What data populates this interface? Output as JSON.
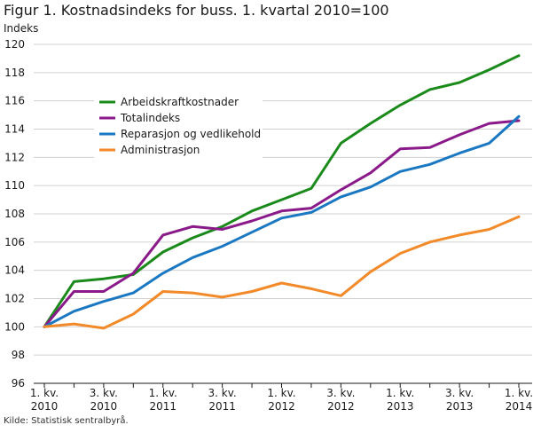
{
  "page": {
    "title": "Figur 1. Kostnadsindeks for buss. 1. kvartal 2010=100",
    "source": "Kilde: Statistisk sentralbyrå."
  },
  "chart_data": {
    "type": "line",
    "title": "Figur 1. Kostnadsindeks for buss. 1. kvartal 2010=100",
    "ylabel": "Indeks",
    "xlabel": "",
    "ylim": [
      96,
      120
    ],
    "yticks": [
      96,
      98,
      100,
      102,
      104,
      106,
      108,
      110,
      112,
      114,
      116,
      118,
      120
    ],
    "grid": true,
    "legend_position": "top-left (inside)",
    "x": [
      "1. kv. 2010",
      "2. kv. 2010",
      "3. kv. 2010",
      "4. kv. 2010",
      "1. kv. 2011",
      "2. kv. 2011",
      "3. kv. 2011",
      "4. kv. 2011",
      "1. kv. 2012",
      "2. kv. 2012",
      "3. kv. 2012",
      "4. kv. 2012",
      "1. kv. 2013",
      "2. kv. 2013",
      "3. kv. 2013",
      "4. kv. 2013",
      "1. kv. 2014"
    ],
    "xtick_labels": [
      {
        "index": 0,
        "line1": "1. kv.",
        "line2": "2010"
      },
      {
        "index": 2,
        "line1": "3. kv.",
        "line2": "2010"
      },
      {
        "index": 4,
        "line1": "1. kv.",
        "line2": "2011"
      },
      {
        "index": 6,
        "line1": "3. kv.",
        "line2": "2011"
      },
      {
        "index": 8,
        "line1": "1. kv.",
        "line2": "2012"
      },
      {
        "index": 10,
        "line1": "3. kv.",
        "line2": "2012"
      },
      {
        "index": 12,
        "line1": "1. kv.",
        "line2": "2013"
      },
      {
        "index": 14,
        "line1": "3. kv.",
        "line2": "2013"
      },
      {
        "index": 16,
        "line1": "1. kv.",
        "line2": "2014"
      }
    ],
    "series": [
      {
        "name": "Arbeidskraftkostnader",
        "color": "#1a8a1a",
        "values": [
          100,
          103.2,
          103.4,
          103.7,
          105.3,
          106.3,
          107.1,
          108.2,
          109.0,
          109.8,
          113.0,
          114.4,
          115.7,
          116.8,
          117.3,
          118.2,
          119.2
        ]
      },
      {
        "name": "Totalindeks",
        "color": "#8a1a8a",
        "values": [
          100,
          102.5,
          102.5,
          103.8,
          106.5,
          107.1,
          106.9,
          107.5,
          108.2,
          108.4,
          109.7,
          110.9,
          112.6,
          112.7,
          113.6,
          114.4,
          114.6
        ]
      },
      {
        "name": "Reparasjon og vedlikehold",
        "color": "#1a78c2",
        "values": [
          100,
          101.1,
          101.8,
          102.4,
          103.8,
          104.9,
          105.7,
          106.7,
          107.7,
          108.1,
          109.2,
          109.9,
          111.0,
          111.5,
          112.3,
          113.0,
          114.9
        ]
      },
      {
        "name": "Administrasjon",
        "color": "#f28a2a",
        "values": [
          100,
          100.2,
          99.9,
          100.9,
          102.5,
          102.4,
          102.1,
          102.5,
          103.1,
          102.7,
          102.2,
          103.9,
          105.2,
          106.0,
          106.5,
          106.9,
          107.8
        ]
      }
    ]
  }
}
